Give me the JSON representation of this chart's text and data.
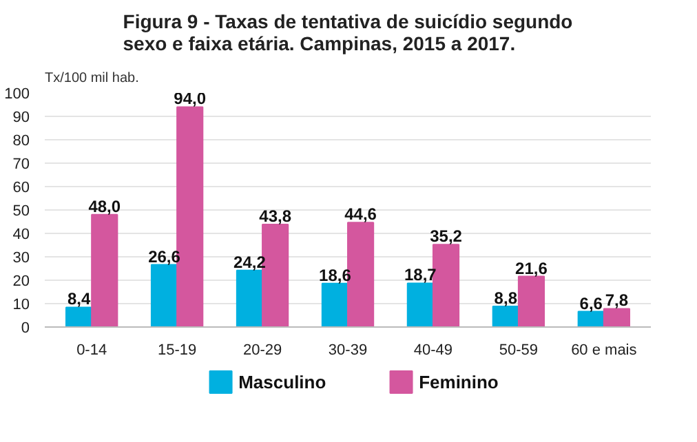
{
  "chart_data": {
    "type": "bar",
    "title": "Figura 9 - Taxas de tentativa de suicídio segundo sexo e faixa etária. Campinas, 2015 a 2017.",
    "ylabel": "Tx/100 mil hab.",
    "categories": [
      "0-14",
      "15-19",
      "20-29",
      "30-39",
      "40-49",
      "50-59",
      "60 e mais"
    ],
    "series": [
      {
        "name": "Masculino",
        "color": "#00b0e0",
        "values": [
          8.4,
          26.6,
          24.2,
          18.6,
          18.7,
          8.8,
          6.6
        ],
        "value_labels": [
          "8,4",
          "26,6",
          "24,2",
          "18,6",
          "18,7",
          "8,8",
          "6,6"
        ]
      },
      {
        "name": "Feminino",
        "color": "#d4579e",
        "values": [
          48.0,
          94.0,
          43.8,
          44.6,
          35.2,
          21.6,
          7.8
        ],
        "value_labels": [
          "48,0",
          "94,0",
          "43,8",
          "44,6",
          "35,2",
          "21,6",
          "7,8"
        ]
      }
    ],
    "ylim": [
      0,
      100
    ],
    "yticks": [
      0,
      10,
      20,
      30,
      40,
      50,
      60,
      70,
      80,
      90,
      100
    ],
    "grid": "y",
    "legend": "bottom"
  }
}
